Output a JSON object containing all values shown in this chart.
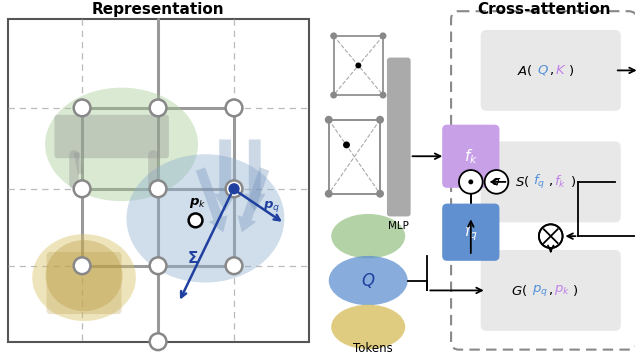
{
  "bg_color": "#ffffff",
  "left_title": "Representation",
  "right_title": "Cross-attention",
  "fk_color": "#c8a0e8",
  "fq_color": "#6090d0",
  "box_gray": "#e8e8e8",
  "purple_text": "#c080e8",
  "blue_text": "#5090d8",
  "node_color": "#ffffff",
  "node_edge": "#888888",
  "green_blob_color": "#a0c890",
  "blue_blob_color": "#90b0d0",
  "yellow_blob_color": "#d8c060"
}
